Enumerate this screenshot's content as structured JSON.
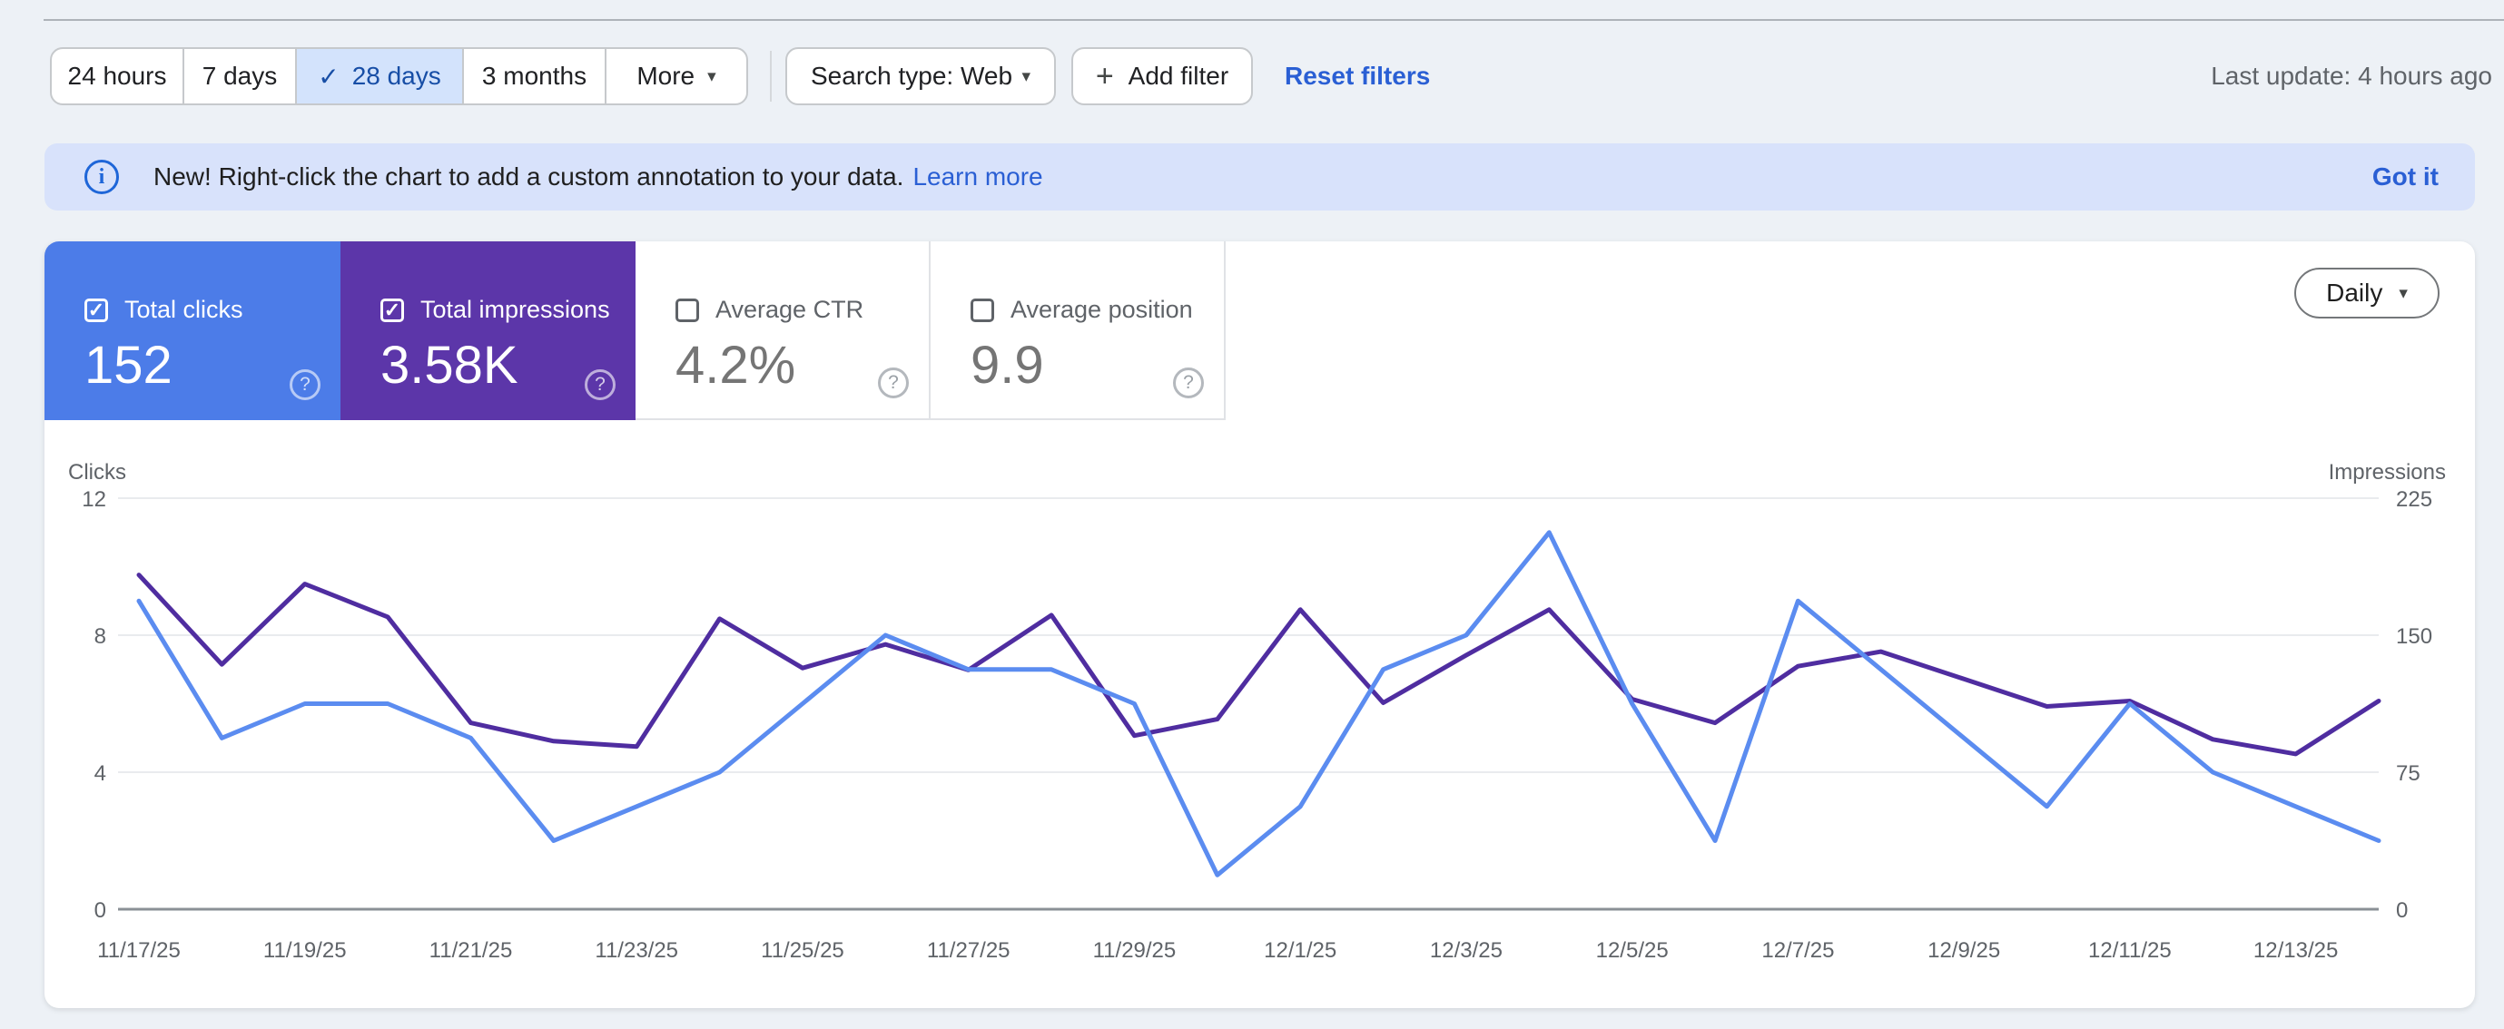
{
  "icons": {
    "check": "✓",
    "caret": "▾",
    "plus": "+",
    "question": "?",
    "info": "i"
  },
  "toolbar": {
    "ranges": [
      {
        "label": "24 hours",
        "selected": false
      },
      {
        "label": "7 days",
        "selected": false
      },
      {
        "label": "28 days",
        "selected": true
      },
      {
        "label": "3 months",
        "selected": false
      },
      {
        "label": "More",
        "selected": false
      }
    ],
    "search_type_label": "Search type: Web",
    "add_filter_label": "Add filter",
    "reset_filters_label": "Reset filters",
    "last_update": "Last update: 4 hours ago"
  },
  "banner": {
    "message": "New! Right-click the chart to add a custom annotation to your data.",
    "learn_more_label": "Learn more",
    "got_it_label": "Got it",
    "background": "#d8e2fb"
  },
  "metrics": {
    "granularity_label": "Daily",
    "cards": [
      {
        "label": "Total clicks",
        "value": "152",
        "checked": true,
        "color": "#4c7ce8"
      },
      {
        "label": "Total impressions",
        "value": "3.58K",
        "checked": true,
        "color": "#5c36a9"
      },
      {
        "label": "Average CTR",
        "value": "4.2%",
        "checked": false,
        "color": "#ffffff"
      },
      {
        "label": "Average position",
        "value": "9.9",
        "checked": false,
        "color": "#ffffff"
      }
    ]
  },
  "chart_data": {
    "type": "line",
    "x": [
      "11/17/25",
      "11/18/25",
      "11/19/25",
      "11/20/25",
      "11/21/25",
      "11/22/25",
      "11/23/25",
      "11/24/25",
      "11/25/25",
      "11/26/25",
      "11/27/25",
      "11/28/25",
      "11/29/25",
      "11/30/25",
      "12/1/25",
      "12/2/25",
      "12/3/25",
      "12/4/25",
      "12/5/25",
      "12/6/25",
      "12/7/25",
      "12/8/25",
      "12/9/25",
      "12/10/25",
      "12/11/25",
      "12/12/25",
      "12/13/25",
      "12/14/25"
    ],
    "x_tick_step": 2,
    "grid": true,
    "left_axis": {
      "label": "Clicks",
      "ticks": [
        0,
        4,
        8,
        12
      ],
      "max": 12
    },
    "right_axis": {
      "label": "Impressions",
      "ticks": [
        0,
        75,
        150,
        225
      ],
      "max": 225
    },
    "series": [
      {
        "name": "Impressions",
        "axis": "right",
        "color": "#4f2da0",
        "values": [
          183,
          134,
          178,
          160,
          102,
          92,
          89,
          159,
          132,
          145,
          131,
          161,
          95,
          104,
          164,
          113,
          139,
          164,
          115,
          102,
          133,
          141,
          126,
          111,
          114,
          93,
          85,
          114
        ]
      },
      {
        "name": "Clicks",
        "axis": "left",
        "color": "#5b8cf0",
        "values": [
          9,
          5,
          6,
          6,
          5,
          2,
          3,
          4,
          6,
          8,
          7,
          7,
          6,
          1,
          3,
          7,
          8,
          11,
          6,
          2,
          9,
          7,
          5,
          3,
          6,
          4,
          3,
          2
        ]
      }
    ]
  }
}
